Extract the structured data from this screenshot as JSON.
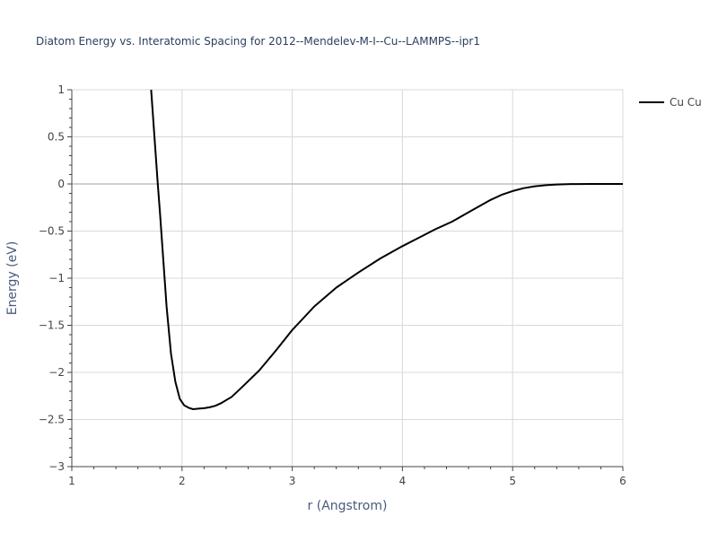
{
  "chart_data": {
    "type": "line",
    "title": "Diatom Energy vs. Interatomic Spacing for 2012--Mendelev-M-I--Cu--LAMMPS--ipr1",
    "xlabel": "r (Angstrom)",
    "ylabel": "Energy (eV)",
    "xlim": [
      1,
      6
    ],
    "ylim": [
      -3,
      1
    ],
    "xticks": [
      1,
      2,
      3,
      4,
      5,
      6
    ],
    "xtick_labels": [
      "1",
      "2",
      "3",
      "4",
      "5",
      "6"
    ],
    "yticks": [
      -3,
      -2.5,
      -2,
      -1.5,
      -1,
      -0.5,
      0,
      0.5,
      1
    ],
    "ytick_labels": [
      "−3",
      "−2.5",
      "−2",
      "−1.5",
      "−1",
      "−0.5",
      "0",
      "0.5",
      "1"
    ],
    "grid": true,
    "legend_position": "top-right",
    "series": [
      {
        "name": "Cu Cu",
        "color": "#000000",
        "x": [
          1.72,
          1.75,
          1.78,
          1.8,
          1.83,
          1.86,
          1.9,
          1.94,
          1.98,
          2.02,
          2.06,
          2.1,
          2.15,
          2.2,
          2.25,
          2.3,
          2.35,
          2.45,
          2.55,
          2.7,
          2.85,
          3.0,
          3.2,
          3.4,
          3.6,
          3.8,
          4.0,
          4.15,
          4.3,
          4.45,
          4.6,
          4.8,
          4.9,
          5.0,
          5.1,
          5.2,
          5.3,
          5.4,
          5.5,
          5.6,
          5.7,
          6.0
        ],
        "y": [
          1.0,
          0.5,
          0.0,
          -0.3,
          -0.8,
          -1.3,
          -1.8,
          -2.1,
          -2.28,
          -2.35,
          -2.375,
          -2.39,
          -2.385,
          -2.38,
          -2.37,
          -2.355,
          -2.33,
          -2.26,
          -2.15,
          -1.98,
          -1.77,
          -1.55,
          -1.3,
          -1.1,
          -0.94,
          -0.79,
          -0.66,
          -0.57,
          -0.48,
          -0.4,
          -0.3,
          -0.17,
          -0.115,
          -0.075,
          -0.045,
          -0.025,
          -0.013,
          -0.006,
          -0.002,
          -0.001,
          0.0,
          0.0
        ]
      }
    ]
  }
}
